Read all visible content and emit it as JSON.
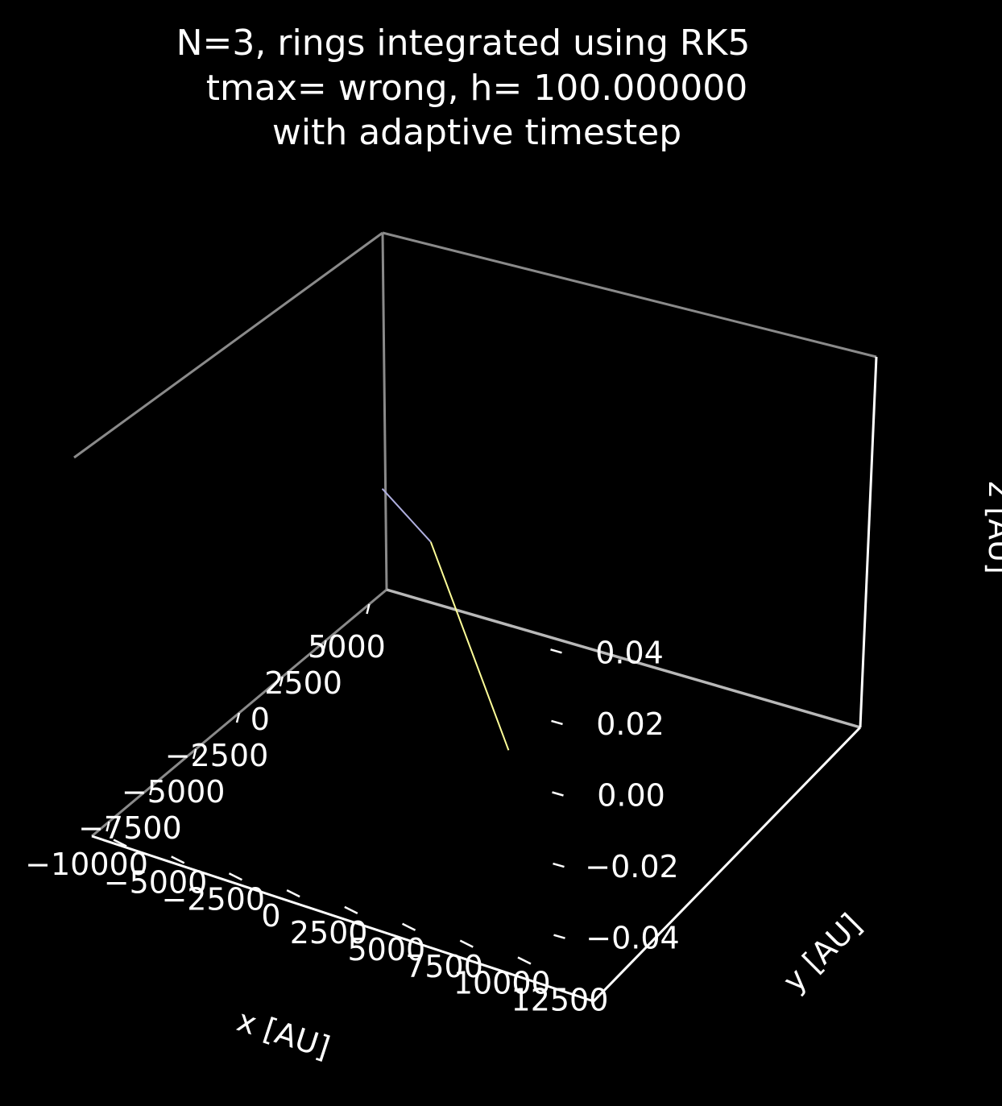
{
  "chart_data": {
    "type": "line",
    "title": [
      "N=3, rings integrated using RK5",
      "tmax= wrong, h= 100.000000",
      "with adaptive timestep"
    ],
    "xlabel": "x [AU]",
    "ylabel": "y [AU]",
    "zlabel": "z [AU]",
    "xticks": [
      "−10000",
      "−7500",
      "−5000",
      "−2500",
      "0",
      "2500",
      "5000"
    ],
    "yticks": [
      "−5000",
      "−2500",
      "0",
      "2500",
      "5000",
      "7500",
      "10000",
      "12500"
    ],
    "zticks": [
      "−0.04",
      "−0.02",
      "0.00",
      "0.02",
      "0.04"
    ],
    "xlim": [
      -11000,
      6000
    ],
    "ylim": [
      -6500,
      14000
    ],
    "zlim": [
      -0.05,
      0.05
    ],
    "grid": false,
    "series": [
      {
        "color": "#ffff99",
        "points": [
          [
            -9500,
            10500,
            0
          ],
          [
            0,
            0,
            0
          ]
        ]
      },
      {
        "color": "#b0b0e0",
        "points": [
          [
            0,
            0,
            0
          ],
          [
            2000,
            -3600,
            0
          ]
        ]
      }
    ]
  }
}
